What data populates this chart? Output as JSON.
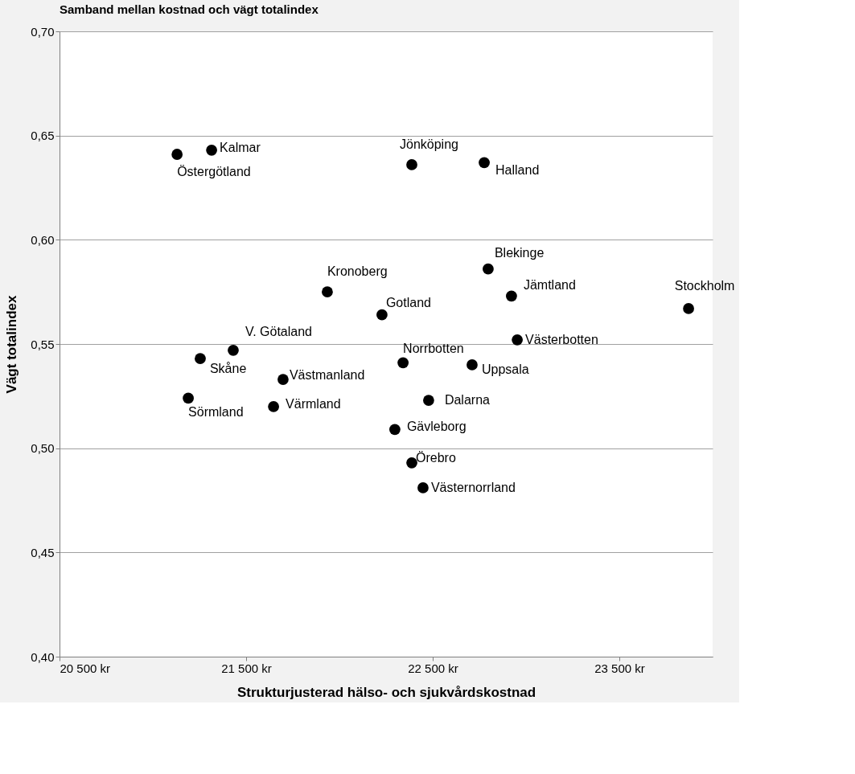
{
  "chart_data": {
    "type": "scatter",
    "title": "Samband mellan kostnad och vägt totalindex",
    "xlabel": "Strukturjusterad hälso- och sjukvårdskostnad",
    "ylabel": "Vägt totalindex",
    "x": [
      21130,
      21315,
      22388,
      22776,
      22797,
      21935,
      22922,
      23871,
      22228,
      22953,
      21431,
      21254,
      22341,
      22711,
      21698,
      21190,
      22478,
      21647,
      22297,
      22388,
      22448
    ],
    "series": [
      {
        "color": "#000000",
        "values": [
          0.641,
          0.643,
          0.636,
          0.637,
          0.586,
          0.575,
          0.573,
          0.567,
          0.564,
          0.552,
          0.547,
          0.543,
          0.541,
          0.54,
          0.533,
          0.524,
          0.523,
          0.52,
          0.509,
          0.493,
          0.481
        ]
      }
    ],
    "annotations": [
      {
        "text": "Östergötland",
        "x": 21130,
        "y": 0.641
      },
      {
        "text": "Kalmar",
        "x": 21315,
        "y": 0.643
      },
      {
        "text": "Jönköping",
        "x": 22388,
        "y": 0.636
      },
      {
        "text": "Halland",
        "x": 22776,
        "y": 0.637
      },
      {
        "text": "Blekinge",
        "x": 22797,
        "y": 0.586
      },
      {
        "text": "Kronoberg",
        "x": 21935,
        "y": 0.575
      },
      {
        "text": "Jämtland",
        "x": 22922,
        "y": 0.573
      },
      {
        "text": "Stockholm",
        "x": 23871,
        "y": 0.567
      },
      {
        "text": "Gotland",
        "x": 22228,
        "y": 0.564
      },
      {
        "text": "Västerbotten",
        "x": 22953,
        "y": 0.552
      },
      {
        "text": "V. Götaland",
        "x": 21431,
        "y": 0.547
      },
      {
        "text": "Skåne",
        "x": 21254,
        "y": 0.543
      },
      {
        "text": "Norrbotten",
        "x": 22341,
        "y": 0.541
      },
      {
        "text": "Uppsala",
        "x": 22711,
        "y": 0.54
      },
      {
        "text": "Västmanland",
        "x": 21698,
        "y": 0.533
      },
      {
        "text": "Sörmland",
        "x": 21190,
        "y": 0.524
      },
      {
        "text": "Dalarna",
        "x": 22478,
        "y": 0.523
      },
      {
        "text": "Värmland",
        "x": 21647,
        "y": 0.52
      },
      {
        "text": "Gävleborg",
        "x": 22297,
        "y": 0.509
      },
      {
        "text": "Örebro",
        "x": 22388,
        "y": 0.493
      },
      {
        "text": "Västernorrland",
        "x": 22448,
        "y": 0.481
      }
    ],
    "xlim": [
      20500,
      24000
    ],
    "xticks": [
      {
        "value": 20500,
        "label": "20 500 kr"
      },
      {
        "value": 21500,
        "label": "21 500 kr"
      },
      {
        "value": 22500,
        "label": "22 500 kr"
      },
      {
        "value": 23500,
        "label": "23 500 kr"
      }
    ],
    "ylim": [
      0.4,
      0.7
    ],
    "yticks": [
      {
        "value": 0.4,
        "label": "0,40"
      },
      {
        "value": 0.45,
        "label": "0,45"
      },
      {
        "value": 0.5,
        "label": "0,50"
      },
      {
        "value": 0.55,
        "label": "0,55"
      },
      {
        "value": 0.6,
        "label": "0,60"
      },
      {
        "value": 0.65,
        "label": "0,65"
      },
      {
        "value": 0.7,
        "label": "0,70"
      }
    ],
    "grid": "y",
    "marker": "circle"
  }
}
